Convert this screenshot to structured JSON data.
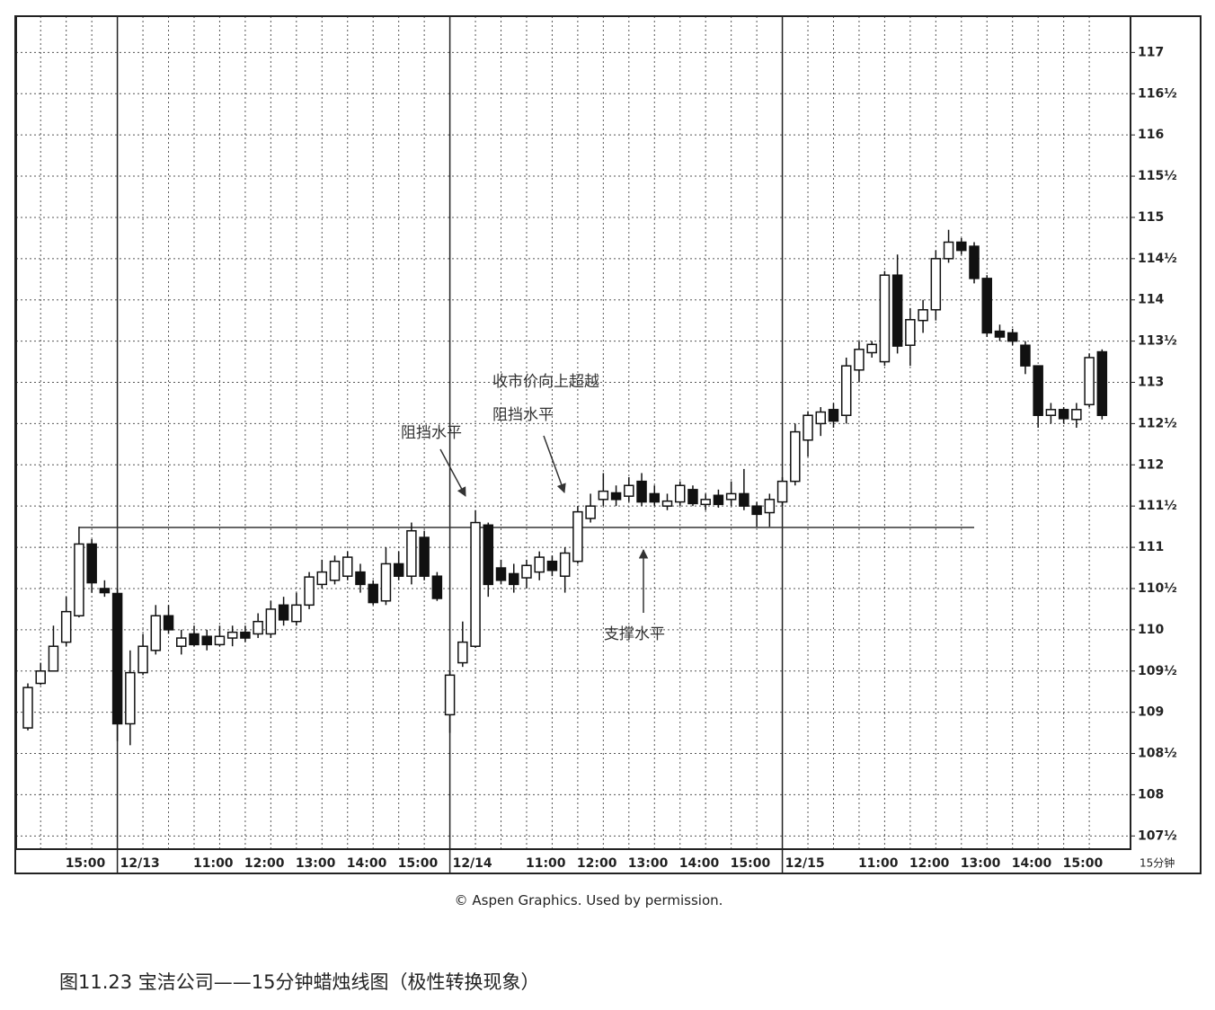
{
  "chart_data": {
    "type": "candlestick",
    "x_label": "15分钟",
    "source": "© Aspen Graphics. Used by permission.",
    "caption": "图11.23 宝洁公司——15分钟蜡烛线图（极性转换现象）",
    "annotations": [
      {
        "text": "阻挡水平"
      },
      {
        "lines": [
          "收市价向上超越",
          "阻挡水平"
        ]
      },
      {
        "text": "支撑水平"
      }
    ],
    "reference_line": {
      "value": 111.24,
      "x_range": [
        4,
        74
      ],
      "color": "#333333"
    },
    "colors": {
      "up": "#ffffff",
      "down": "#111111",
      "outline": "#111111"
    },
    "grid": true,
    "ylim": [
      107.34,
      117.44
    ],
    "yticks": [
      {
        "value": 107.5,
        "label": "107½"
      },
      108,
      {
        "value": 108.5,
        "label": "108½"
      },
      109,
      {
        "value": 109.5,
        "label": "109½"
      },
      110,
      {
        "value": 110.5,
        "label": "110½"
      },
      111,
      {
        "value": 111.5,
        "label": "111½"
      },
      112,
      {
        "value": 112.5,
        "label": "112½"
      },
      113,
      {
        "value": 113.5,
        "label": "113½"
      },
      114,
      {
        "value": 114.5,
        "label": "114½"
      },
      115,
      {
        "value": 115.5,
        "label": "115½"
      },
      116,
      {
        "value": 116.5,
        "label": "116½"
      },
      117
    ],
    "categories": [
      null,
      null,
      null,
      "15:00",
      null,
      null,
      null,
      "12/13",
      null,
      null,
      null,
      null,
      null,
      "11:00",
      null,
      null,
      null,
      "12:00",
      null,
      null,
      null,
      "13:00",
      null,
      null,
      null,
      "14:00",
      null,
      null,
      null,
      "15:00",
      null,
      null,
      null,
      "12/14",
      null,
      null,
      null,
      null,
      null,
      "11:00",
      null,
      null,
      null,
      "12:00",
      null,
      null,
      null,
      "13:00",
      null,
      null,
      null,
      "14:00",
      null,
      null,
      null,
      "15:00",
      null,
      null,
      null,
      "12/15",
      null,
      null,
      null,
      null,
      null,
      "11:00",
      null,
      null,
      null,
      "12:00",
      null,
      null,
      null,
      "13:00",
      null,
      null,
      null,
      "14:00",
      null,
      null,
      null,
      "15:00",
      null,
      null,
      null
    ],
    "open": [
      108.81,
      109.35,
      109.5,
      109.85,
      110.17,
      111.04,
      110.5,
      110.44,
      108.86,
      109.48,
      109.75,
      110.17,
      109.8,
      109.95,
      109.92,
      109.82,
      109.9,
      109.97,
      109.95,
      109.95,
      110.3,
      110.1,
      110.3,
      110.55,
      110.6,
      110.65,
      110.7,
      110.55,
      110.35,
      110.8,
      110.65,
      111.12,
      110.65,
      108.97,
      109.6,
      109.8,
      111.27,
      110.75,
      110.68,
      110.63,
      110.7,
      110.83,
      110.65,
      110.83,
      111.35,
      111.58,
      111.66,
      111.62,
      111.8,
      111.65,
      111.5,
      111.55,
      111.7,
      111.52,
      111.63,
      111.58,
      111.65,
      111.5,
      111.42,
      111.55,
      111.8,
      112.3,
      112.5,
      112.67,
      112.6,
      113.15,
      113.36,
      113.25,
      114.3,
      113.45,
      113.75,
      113.88,
      114.5,
      114.7,
      114.65,
      114.26,
      113.62,
      113.6,
      113.45,
      113.2,
      112.6,
      112.67,
      112.55,
      112.73,
      113.37
    ],
    "high": [
      109.35,
      109.6,
      110.05,
      110.4,
      111.25,
      111.1,
      110.6,
      110.5,
      109.75,
      109.95,
      110.3,
      110.3,
      110.0,
      110.05,
      110.0,
      110.05,
      110.05,
      110.05,
      110.2,
      110.35,
      110.4,
      110.45,
      110.7,
      110.85,
      110.9,
      110.95,
      110.8,
      110.6,
      111.0,
      110.95,
      111.3,
      111.2,
      110.7,
      109.5,
      110.1,
      111.45,
      111.3,
      110.85,
      110.8,
      110.85,
      110.95,
      110.9,
      111.0,
      111.5,
      111.65,
      111.9,
      111.75,
      111.85,
      111.9,
      111.75,
      111.65,
      111.8,
      111.75,
      111.65,
      111.7,
      111.8,
      111.95,
      111.55,
      111.65,
      111.85,
      112.5,
      112.65,
      112.7,
      112.75,
      113.3,
      113.5,
      113.5,
      114.35,
      114.55,
      113.9,
      114.0,
      114.6,
      114.85,
      114.75,
      114.7,
      114.3,
      113.7,
      113.65,
      113.5,
      113.2,
      112.75,
      112.7,
      112.75,
      113.35,
      113.4
    ],
    "low": [
      108.78,
      109.33,
      109.5,
      109.8,
      110.15,
      110.45,
      110.4,
      108.65,
      108.6,
      109.45,
      109.7,
      109.95,
      109.7,
      109.8,
      109.75,
      109.8,
      109.8,
      109.85,
      109.9,
      109.9,
      110.05,
      110.05,
      110.25,
      110.5,
      110.55,
      110.6,
      110.45,
      110.3,
      110.3,
      110.6,
      110.55,
      110.6,
      110.35,
      108.75,
      109.55,
      109.78,
      110.4,
      110.55,
      110.45,
      110.5,
      110.6,
      110.65,
      110.45,
      110.8,
      111.3,
      111.5,
      111.5,
      111.55,
      111.5,
      111.5,
      111.45,
      111.5,
      111.5,
      111.45,
      111.48,
      111.5,
      111.45,
      111.25,
      111.25,
      111.5,
      111.75,
      112.1,
      112.35,
      112.45,
      112.5,
      113.0,
      113.3,
      113.2,
      113.35,
      113.2,
      113.6,
      113.75,
      114.45,
      114.55,
      114.2,
      113.55,
      113.5,
      113.45,
      113.1,
      112.45,
      112.5,
      112.5,
      112.45,
      112.7,
      112.55
    ],
    "close": [
      109.3,
      109.5,
      109.8,
      110.22,
      111.04,
      110.57,
      110.45,
      108.86,
      109.48,
      109.8,
      110.17,
      110.0,
      109.9,
      109.82,
      109.82,
      109.92,
      109.97,
      109.9,
      110.1,
      110.25,
      110.12,
      110.3,
      110.64,
      110.7,
      110.83,
      110.88,
      110.55,
      110.33,
      110.8,
      110.65,
      111.2,
      110.65,
      110.38,
      109.45,
      109.85,
      111.3,
      110.55,
      110.6,
      110.55,
      110.78,
      110.88,
      110.72,
      110.93,
      111.43,
      111.5,
      111.68,
      111.58,
      111.75,
      111.55,
      111.55,
      111.56,
      111.75,
      111.53,
      111.58,
      111.52,
      111.65,
      111.5,
      111.4,
      111.58,
      111.8,
      112.4,
      112.6,
      112.64,
      112.53,
      113.2,
      113.4,
      113.46,
      114.3,
      113.44,
      113.76,
      113.88,
      114.5,
      114.7,
      114.6,
      114.26,
      113.6,
      113.55,
      113.5,
      113.2,
      112.6,
      112.67,
      112.56,
      112.67,
      113.3,
      112.6
    ]
  }
}
